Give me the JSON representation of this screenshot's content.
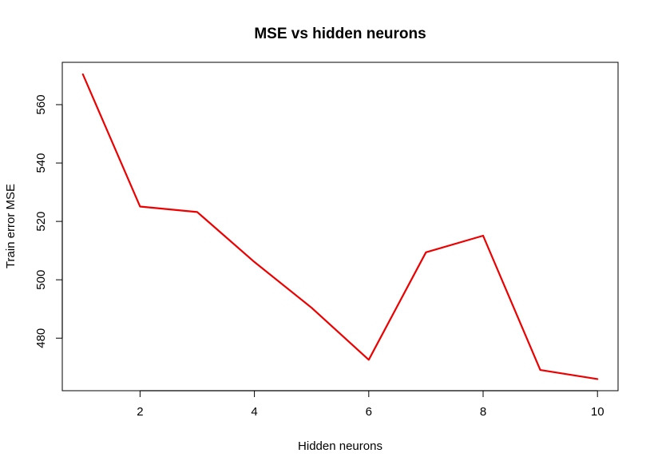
{
  "chart_data": {
    "type": "line",
    "title": "MSE vs hidden neurons",
    "xlabel": "Hidden neurons",
    "ylabel": "Train error MSE",
    "xlim": [
      0.64,
      10.36
    ],
    "ylim": [
      462.0,
      574.5
    ],
    "x_ticks": [
      2,
      4,
      6,
      8,
      10
    ],
    "y_ticks": [
      480,
      500,
      520,
      540,
      560
    ],
    "grid": false,
    "legend": "none",
    "series": [
      {
        "color": "#ee0000",
        "x": [
          1,
          2,
          3,
          4,
          5,
          6,
          7,
          8,
          9,
          10
        ],
        "y": [
          570.4,
          525.1,
          523.2,
          506.1,
          490.4,
          472.6,
          509.4,
          515.1,
          469.1,
          466.0
        ]
      }
    ]
  }
}
